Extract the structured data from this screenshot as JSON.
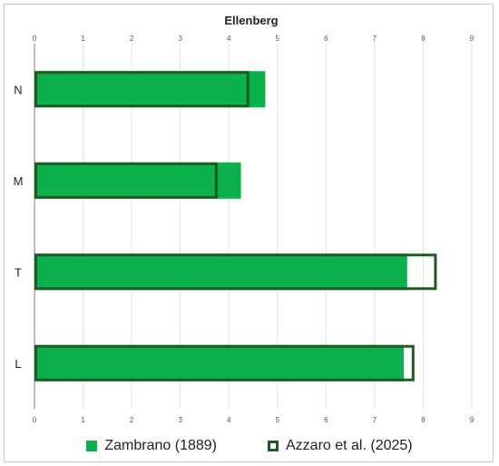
{
  "chart_data": {
    "type": "bar",
    "orientation": "horizontal",
    "title": "Ellenberg",
    "categories": [
      "N",
      "M",
      "T",
      "L"
    ],
    "series": [
      {
        "name": "Zambrano (1889)",
        "style": "filled",
        "color": "#0db14b",
        "values": [
          4.75,
          4.25,
          7.67,
          7.6
        ]
      },
      {
        "name": "Azzaro et al. (2025)",
        "style": "outline",
        "color": "#1e5b24",
        "values": [
          4.42,
          3.77,
          8.28,
          7.82
        ]
      }
    ],
    "xlim": [
      0,
      9
    ],
    "xticks": [
      "0",
      "1",
      "2",
      "3",
      "4",
      "5",
      "6",
      "7",
      "8",
      "9"
    ],
    "axis_ticks_top_and_bottom": true,
    "grid": true,
    "legend_position": "bottom"
  }
}
